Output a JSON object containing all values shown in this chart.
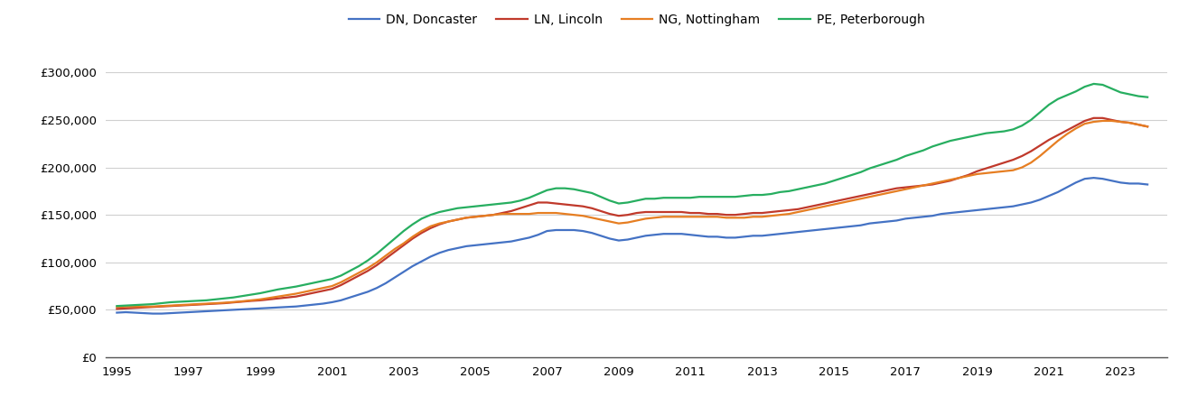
{
  "years": [
    1995.0,
    1995.25,
    1995.5,
    1995.75,
    1996.0,
    1996.25,
    1996.5,
    1996.75,
    1997.0,
    1997.25,
    1997.5,
    1997.75,
    1998.0,
    1998.25,
    1998.5,
    1998.75,
    1999.0,
    1999.25,
    1999.5,
    1999.75,
    2000.0,
    2000.25,
    2000.5,
    2000.75,
    2001.0,
    2001.25,
    2001.5,
    2001.75,
    2002.0,
    2002.25,
    2002.5,
    2002.75,
    2003.0,
    2003.25,
    2003.5,
    2003.75,
    2004.0,
    2004.25,
    2004.5,
    2004.75,
    2005.0,
    2005.25,
    2005.5,
    2005.75,
    2006.0,
    2006.25,
    2006.5,
    2006.75,
    2007.0,
    2007.25,
    2007.5,
    2007.75,
    2008.0,
    2008.25,
    2008.5,
    2008.75,
    2009.0,
    2009.25,
    2009.5,
    2009.75,
    2010.0,
    2010.25,
    2010.5,
    2010.75,
    2011.0,
    2011.25,
    2011.5,
    2011.75,
    2012.0,
    2012.25,
    2012.5,
    2012.75,
    2013.0,
    2013.25,
    2013.5,
    2013.75,
    2014.0,
    2014.25,
    2014.5,
    2014.75,
    2015.0,
    2015.25,
    2015.5,
    2015.75,
    2016.0,
    2016.25,
    2016.5,
    2016.75,
    2017.0,
    2017.25,
    2017.5,
    2017.75,
    2018.0,
    2018.25,
    2018.5,
    2018.75,
    2019.0,
    2019.25,
    2019.5,
    2019.75,
    2020.0,
    2020.25,
    2020.5,
    2020.75,
    2021.0,
    2021.25,
    2021.5,
    2021.75,
    2022.0,
    2022.25,
    2022.5,
    2022.75,
    2023.0,
    2023.25,
    2023.5,
    2023.75
  ],
  "DN_Doncaster": [
    47000,
    47500,
    47000,
    46500,
    46000,
    46000,
    46500,
    47000,
    47500,
    48000,
    48500,
    49000,
    49500,
    50000,
    50500,
    51000,
    51500,
    52000,
    52500,
    53000,
    53500,
    54500,
    55500,
    56500,
    58000,
    60000,
    63000,
    66000,
    69000,
    73000,
    78000,
    84000,
    90000,
    96000,
    101000,
    106000,
    110000,
    113000,
    115000,
    117000,
    118000,
    119000,
    120000,
    121000,
    122000,
    124000,
    126000,
    129000,
    133000,
    134000,
    134000,
    134000,
    133000,
    131000,
    128000,
    125000,
    123000,
    124000,
    126000,
    128000,
    129000,
    130000,
    130000,
    130000,
    129000,
    128000,
    127000,
    127000,
    126000,
    126000,
    127000,
    128000,
    128000,
    129000,
    130000,
    131000,
    132000,
    133000,
    134000,
    135000,
    136000,
    137000,
    138000,
    139000,
    141000,
    142000,
    143000,
    144000,
    146000,
    147000,
    148000,
    149000,
    151000,
    152000,
    153000,
    154000,
    155000,
    156000,
    157000,
    158000,
    159000,
    161000,
    163000,
    166000,
    170000,
    174000,
    179000,
    184000,
    188000,
    189000,
    188000,
    186000,
    184000,
    183000,
    183000,
    182000
  ],
  "LN_Lincoln": [
    51000,
    51500,
    52000,
    52500,
    53000,
    53500,
    54000,
    54500,
    55000,
    55500,
    56000,
    56500,
    57000,
    57800,
    58600,
    59400,
    60000,
    61000,
    62000,
    63000,
    64000,
    66000,
    68000,
    70000,
    72000,
    76000,
    81000,
    86000,
    91000,
    97000,
    104000,
    111000,
    118000,
    125000,
    131000,
    136000,
    140000,
    143000,
    145000,
    147000,
    148000,
    149000,
    150000,
    152000,
    154000,
    157000,
    160000,
    163000,
    163000,
    162000,
    161000,
    160000,
    159000,
    157000,
    154000,
    151000,
    149000,
    150000,
    152000,
    153000,
    153000,
    153000,
    153000,
    153000,
    152000,
    152000,
    151000,
    151000,
    150000,
    150000,
    151000,
    152000,
    152000,
    153000,
    154000,
    155000,
    156000,
    158000,
    160000,
    162000,
    164000,
    166000,
    168000,
    170000,
    172000,
    174000,
    176000,
    178000,
    179000,
    180000,
    181000,
    182000,
    184000,
    186000,
    189000,
    192000,
    196000,
    199000,
    202000,
    205000,
    208000,
    212000,
    217000,
    223000,
    229000,
    234000,
    239000,
    244000,
    249000,
    252000,
    252000,
    250000,
    248000,
    247000,
    245000,
    243000
  ],
  "NG_Nottingham": [
    53000,
    53500,
    53500,
    53500,
    53500,
    54000,
    54500,
    55000,
    55500,
    56000,
    56500,
    57000,
    57500,
    58200,
    59000,
    60000,
    61000,
    62500,
    64000,
    65500,
    67000,
    69000,
    71000,
    73000,
    75000,
    79000,
    84000,
    89000,
    94000,
    100000,
    107000,
    114000,
    120000,
    127000,
    133000,
    138000,
    141000,
    143000,
    145000,
    147000,
    148000,
    149000,
    150000,
    151000,
    151000,
    151000,
    151000,
    152000,
    152000,
    152000,
    151000,
    150000,
    149000,
    147000,
    145000,
    143000,
    141000,
    142000,
    144000,
    146000,
    147000,
    148000,
    148000,
    148000,
    148000,
    148000,
    148000,
    148000,
    147000,
    147000,
    147000,
    148000,
    148000,
    149000,
    150000,
    151000,
    153000,
    155000,
    157000,
    159000,
    161000,
    163000,
    165000,
    167000,
    169000,
    171000,
    173000,
    175000,
    177000,
    179000,
    181000,
    183000,
    185000,
    187000,
    189000,
    191000,
    193000,
    194000,
    195000,
    196000,
    197000,
    200000,
    205000,
    212000,
    220000,
    228000,
    235000,
    241000,
    246000,
    248000,
    249000,
    249000,
    248000,
    247000,
    245000,
    243000
  ],
  "PE_Peterborough": [
    54000,
    54500,
    55000,
    55500,
    56000,
    57000,
    58000,
    58500,
    59000,
    59500,
    60000,
    61000,
    62000,
    63000,
    64500,
    66000,
    67500,
    69500,
    71500,
    73000,
    74500,
    76500,
    78500,
    80500,
    82500,
    86000,
    91000,
    96000,
    102000,
    109000,
    117000,
    125000,
    133000,
    140000,
    146000,
    150000,
    153000,
    155000,
    157000,
    158000,
    159000,
    160000,
    161000,
    162000,
    163000,
    165000,
    168000,
    172000,
    176000,
    178000,
    178000,
    177000,
    175000,
    173000,
    169000,
    165000,
    162000,
    163000,
    165000,
    167000,
    167000,
    168000,
    168000,
    168000,
    168000,
    169000,
    169000,
    169000,
    169000,
    169000,
    170000,
    171000,
    171000,
    172000,
    174000,
    175000,
    177000,
    179000,
    181000,
    183000,
    186000,
    189000,
    192000,
    195000,
    199000,
    202000,
    205000,
    208000,
    212000,
    215000,
    218000,
    222000,
    225000,
    228000,
    230000,
    232000,
    234000,
    236000,
    237000,
    238000,
    240000,
    244000,
    250000,
    258000,
    266000,
    272000,
    276000,
    280000,
    285000,
    288000,
    287000,
    283000,
    279000,
    277000,
    275000,
    274000
  ],
  "colors": {
    "DN_Doncaster": "#4472c4",
    "LN_Lincoln": "#c0392b",
    "NG_Nottingham": "#e67e22",
    "PE_Peterborough": "#27ae60"
  },
  "legend_labels": {
    "DN_Doncaster": "DN, Doncaster",
    "LN_Lincoln": "LN, Lincoln",
    "NG_Nottingham": "NG, Nottingham",
    "PE_Peterborough": "PE, Peterborough"
  },
  "ylim": [
    0,
    325000
  ],
  "yticks": [
    0,
    50000,
    100000,
    150000,
    200000,
    250000,
    300000
  ],
  "xticks": [
    1995,
    1997,
    1999,
    2001,
    2003,
    2005,
    2007,
    2009,
    2011,
    2013,
    2015,
    2017,
    2019,
    2021,
    2023
  ],
  "xlim": [
    1994.7,
    2024.3
  ],
  "background_color": "#ffffff",
  "grid_color": "#d0d0d0",
  "linewidth": 1.6
}
